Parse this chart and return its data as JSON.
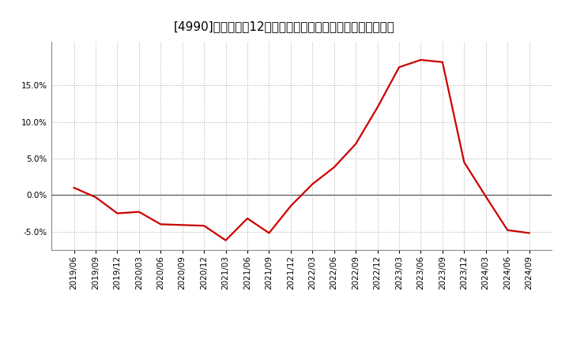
{
  "title": "[4990]　売上高の12か月移動合計の対前年同期増減率の推移",
  "x_labels": [
    "2019/06",
    "2019/09",
    "2019/12",
    "2020/03",
    "2020/06",
    "2020/09",
    "2020/12",
    "2021/03",
    "2021/06",
    "2021/09",
    "2021/12",
    "2022/03",
    "2022/06",
    "2022/09",
    "2022/12",
    "2023/03",
    "2023/06",
    "2023/09",
    "2023/12",
    "2024/03",
    "2024/06",
    "2024/09"
  ],
  "values": [
    1.0,
    -0.3,
    -2.5,
    -2.3,
    -4.0,
    -4.1,
    -4.2,
    -6.2,
    -3.2,
    -5.2,
    -1.5,
    1.5,
    3.8,
    7.0,
    12.0,
    17.5,
    18.5,
    18.2,
    4.5,
    -0.2,
    -4.8,
    -5.2
  ],
  "line_color": "#cc0000",
  "bg_color": "#ffffff",
  "plot_bg_color": "#ffffff",
  "grid_color": "#aaaaaa",
  "zero_line_color": "#555555",
  "ylim": [
    -7.5,
    21.0
  ],
  "yticks": [
    -5.0,
    0.0,
    5.0,
    10.0,
    15.0
  ],
  "title_fontsize": 11,
  "tick_fontsize": 7.5
}
